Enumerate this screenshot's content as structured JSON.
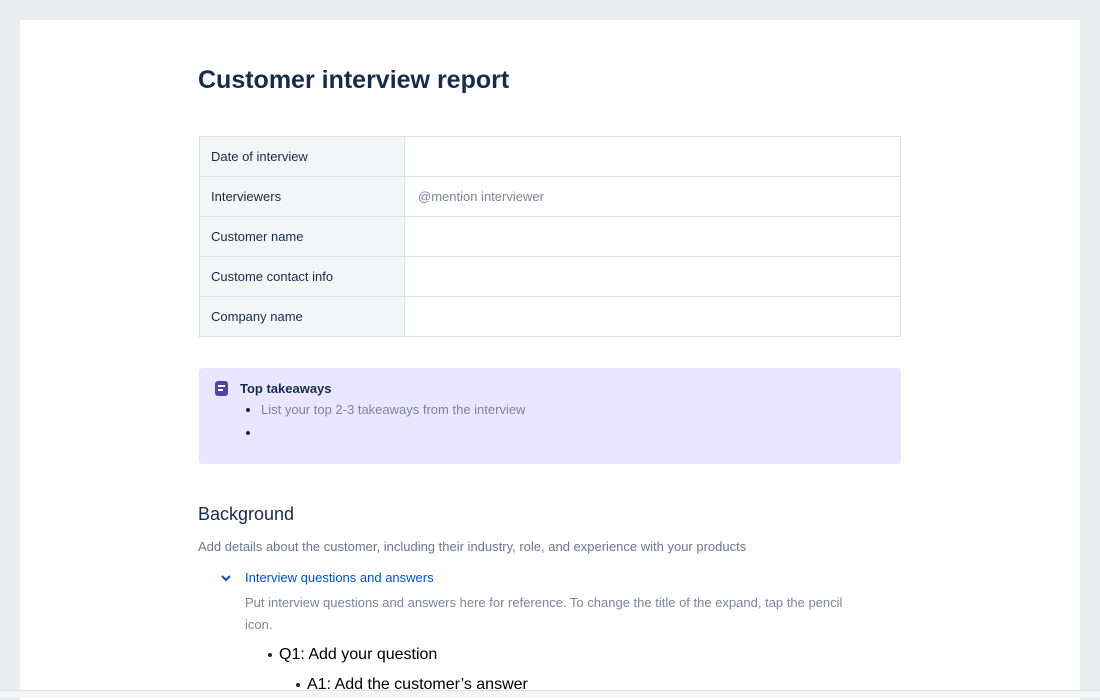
{
  "title": "Customer interview report",
  "info_table": [
    {
      "label": "Date of interview",
      "value": ""
    },
    {
      "label": "Interviewers",
      "value": "@mention interviewer"
    },
    {
      "label": "Customer name",
      "value": ""
    },
    {
      "label": "Custome contact info",
      "value": ""
    },
    {
      "label": "Company name",
      "value": ""
    }
  ],
  "panel": {
    "icon": "note-icon",
    "color": "#eae6ff",
    "title": "Top takeaways",
    "items": [
      "List your top 2-3 takeaways from the interview",
      ""
    ]
  },
  "background": {
    "heading": "Background",
    "description": "Add details about the customer, including their industry, role, and experience with your products"
  },
  "expand": {
    "icon": "chevron-down-icon",
    "title": "Interview questions and answers",
    "body": "Put interview questions and answers here for reference. To change the title of the expand, tap the pencil icon.",
    "question": "Q1: Add your question",
    "answer": "A1: Add the customer’s answer"
  }
}
